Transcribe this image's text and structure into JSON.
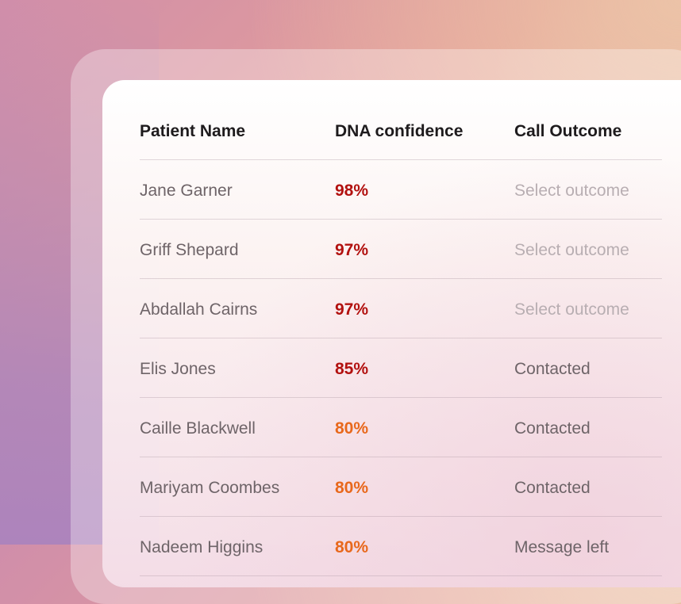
{
  "table": {
    "headers": {
      "name": "Patient Name",
      "confidence": "DNA confidence",
      "outcome": "Call Outcome"
    },
    "rows": [
      {
        "name": "Jane Garner",
        "confidence": "98%",
        "outcome": "Select outcome"
      },
      {
        "name": "Griff Shepard",
        "confidence": "97%",
        "outcome": "Select outcome"
      },
      {
        "name": "Abdallah Cairns",
        "confidence": "97%",
        "outcome": "Select outcome"
      },
      {
        "name": "Elis Jones",
        "confidence": "85%",
        "outcome": "Contacted"
      },
      {
        "name": "Caille Blackwell",
        "confidence": "80%",
        "outcome": "Contacted"
      },
      {
        "name": "Mariyam Coombes",
        "confidence": "80%",
        "outcome": "Contacted"
      },
      {
        "name": "Nadeem Higgins",
        "confidence": "80%",
        "outcome": "Message left"
      }
    ]
  },
  "colors": {
    "high_confidence": "#b2110f",
    "mid_confidence": "#e8681c",
    "placeholder_text": "#b8aeb2",
    "body_text": "#6e6468",
    "header_text": "#1e1b1d"
  }
}
